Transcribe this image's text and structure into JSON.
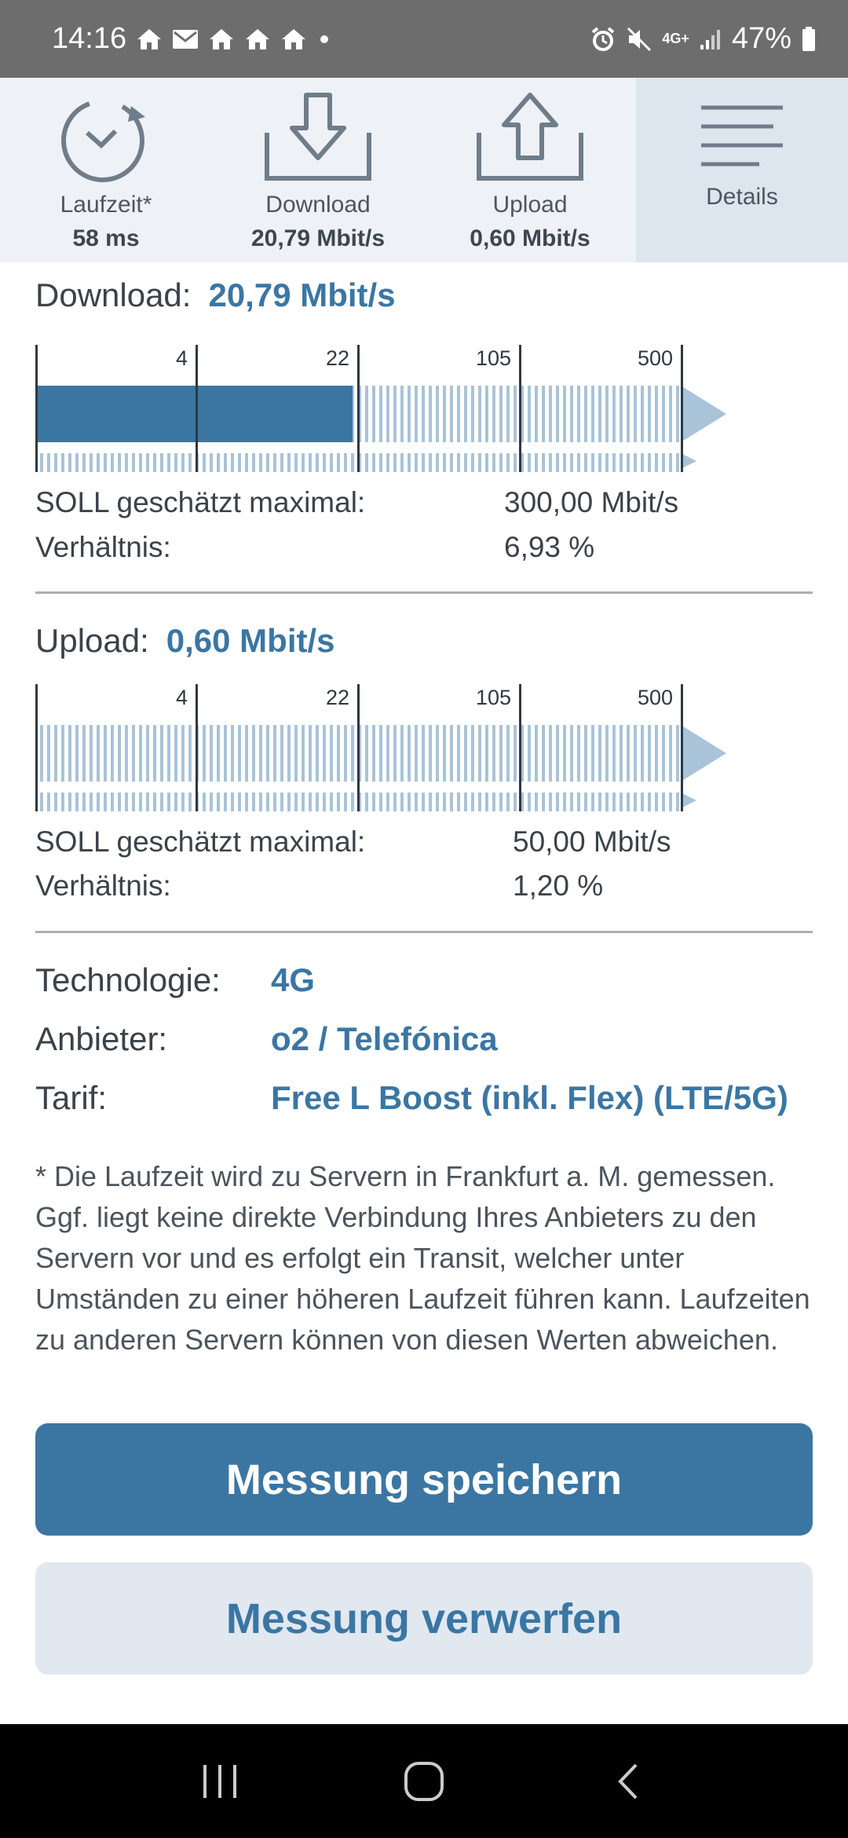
{
  "status_bar": {
    "time": "14:16",
    "network": "4G+",
    "battery": "47%"
  },
  "tabs": [
    {
      "label": "Laufzeit*",
      "value": "58 ms",
      "icon": "stopwatch-icon"
    },
    {
      "label": "Download",
      "value": "20,79 Mbit/s",
      "icon": "download-icon"
    },
    {
      "label": "Upload",
      "value": "0,60 Mbit/s",
      "icon": "upload-icon"
    },
    {
      "label": "Details",
      "value": "",
      "icon": "menu-lines-icon"
    }
  ],
  "download": {
    "title": "Download:",
    "value": "20,79 Mbit/s",
    "scale_labels": [
      "4",
      "22",
      "105",
      "500"
    ],
    "fill_fraction": 0.492,
    "soll_label": "SOLL geschätzt maximal:",
    "soll_value": "300,00 Mbit/s",
    "ratio_label": "Verhältnis:",
    "ratio_value": "6,93 %"
  },
  "upload": {
    "title": "Upload:",
    "value": "0,60 Mbit/s",
    "scale_labels": [
      "4",
      "22",
      "105",
      "500"
    ],
    "fill_fraction": 0.0,
    "soll_label": "SOLL geschätzt maximal:",
    "soll_value": "50,00 Mbit/s",
    "ratio_label": "Verhältnis:",
    "ratio_value": "1,20 %"
  },
  "info": [
    {
      "label": "Technologie:",
      "value": "4G"
    },
    {
      "label": "Anbieter:",
      "value": "o2 / Telefónica"
    },
    {
      "label": "Tarif:",
      "value": "Free L Boost (inkl. Flex) (LTE/5G)"
    }
  ],
  "footnote": "* Die Laufzeit wird zu Servern in Frankfurt a. M. gemessen. Ggf. liegt keine direkte Verbindung Ihres Anbieters zu den Servern vor und es erfolgt ein Transit, welcher unter Umständen zu einer höheren Laufzeit führen kann. Laufzeiten zu anderen Servern können von diesen Werten abweichen.",
  "buttons": {
    "save": "Messung speichern",
    "discard": "Messung verwerfen"
  },
  "colors": {
    "accent": "#3b76a3",
    "gauge_fill": "#3b76a3",
    "gauge_stripe": "#a9c3d8",
    "tab_active_bg": "#dde5ef"
  }
}
